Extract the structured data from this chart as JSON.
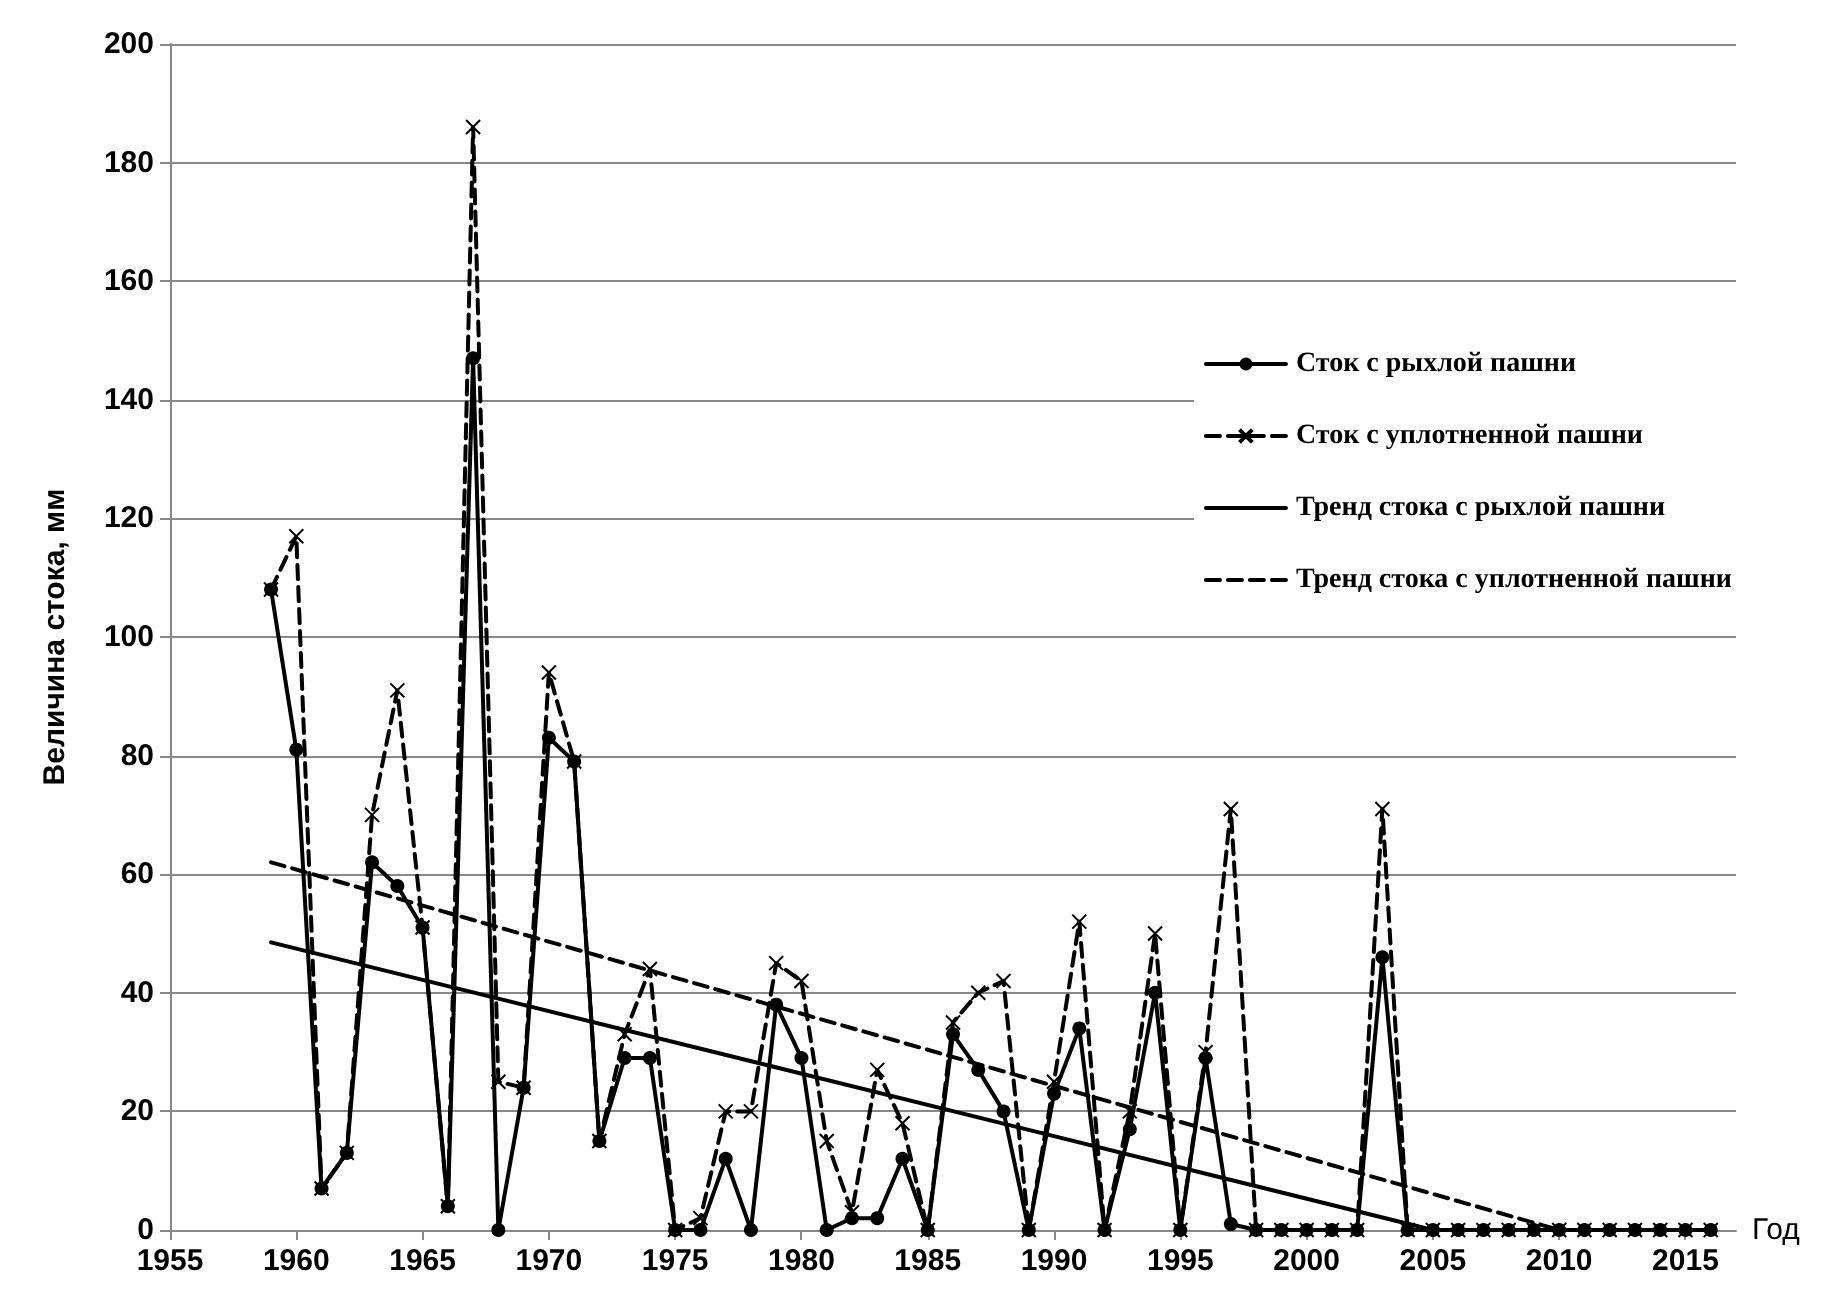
{
  "chart_data": {
    "type": "line",
    "xlabel": "Год",
    "ylabel": "Величина стока, мм",
    "x": [
      1959,
      1960,
      1961,
      1962,
      1963,
      1964,
      1965,
      1966,
      1967,
      1968,
      1969,
      1970,
      1971,
      1972,
      1973,
      1974,
      1975,
      1976,
      1977,
      1978,
      1979,
      1980,
      1981,
      1982,
      1983,
      1984,
      1985,
      1986,
      1987,
      1988,
      1989,
      1990,
      1991,
      1992,
      1993,
      1994,
      1995,
      1996,
      1997,
      1998,
      1999,
      2000,
      2001,
      2002,
      2003,
      2004,
      2005,
      2006,
      2007,
      2008,
      2009,
      2010,
      2011,
      2012,
      2013,
      2014,
      2015,
      2016
    ],
    "series": [
      {
        "name": "Сток с рыхлой пашни",
        "color": "#000000",
        "marker": "circle",
        "line_style": "solid",
        "values": [
          108,
          81,
          7,
          13,
          62,
          58,
          51,
          4,
          147,
          0,
          24,
          83,
          79,
          15,
          29,
          29,
          0,
          0,
          12,
          0,
          38,
          29,
          0,
          2,
          2,
          12,
          0,
          33,
          27,
          20,
          0,
          23,
          34,
          0,
          17,
          40,
          0,
          29,
          1,
          0,
          0,
          0,
          0,
          0,
          46,
          0,
          0,
          0,
          0,
          0,
          0,
          0,
          0,
          0,
          0,
          0,
          0,
          0
        ]
      },
      {
        "name": "Сток с уплотненной пашни",
        "color": "#000000",
        "marker": "cross",
        "line_style": "dashed",
        "values": [
          108,
          117,
          7,
          13,
          70,
          91,
          51,
          4,
          186,
          25,
          24,
          94,
          79,
          15,
          33,
          44,
          0,
          2,
          20,
          20,
          45,
          42,
          15,
          3,
          27,
          18,
          0,
          35,
          40,
          42,
          0,
          25,
          52,
          0,
          20,
          50,
          0,
          30,
          71,
          0,
          0,
          0,
          0,
          0,
          71,
          0,
          0,
          0,
          0,
          0,
          0,
          0,
          0,
          0,
          0,
          0,
          0,
          0
        ]
      },
      {
        "name": "Тренд стока с рыхлой пашни",
        "color": "#000000",
        "marker": "none",
        "line_style": "solid",
        "x": [
          1959,
          2005
        ],
        "values": [
          48.5,
          0
        ]
      },
      {
        "name": "Тренд стока с уплотненной пашни",
        "color": "#000000",
        "marker": "none",
        "line_style": "dashed",
        "x": [
          1959,
          2010
        ],
        "values": [
          62,
          0
        ]
      }
    ],
    "xlim": [
      1955,
      2017
    ],
    "xticks": [
      1955,
      1960,
      1965,
      1970,
      1975,
      1980,
      1985,
      1990,
      1995,
      2000,
      2005,
      2010,
      2015
    ],
    "ylim": [
      0,
      200
    ],
    "yticks": [
      0,
      20,
      40,
      60,
      80,
      100,
      120,
      140,
      160,
      180,
      200
    ],
    "grid": "y",
    "legend": "right"
  }
}
